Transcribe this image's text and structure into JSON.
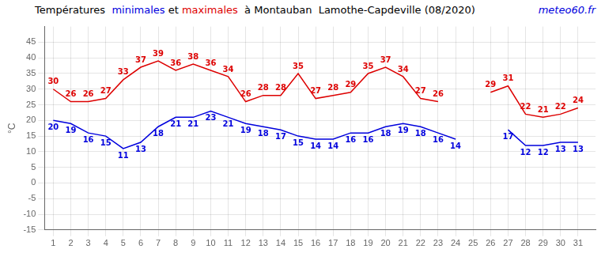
{
  "chart_data": {
    "type": "line",
    "title": "Températures  minimales et maximales  à Montauban  Lamothe-Capdeville (08/2020)",
    "y_label": "°C",
    "annotations": [
      "meteo60.fr"
    ],
    "x": [
      1,
      2,
      3,
      4,
      5,
      6,
      7,
      8,
      9,
      10,
      11,
      12,
      13,
      14,
      15,
      16,
      17,
      18,
      19,
      20,
      21,
      22,
      23,
      24,
      25,
      26,
      27,
      28,
      29,
      30,
      31
    ],
    "series": [
      {
        "name": "minimales",
        "color": "#0000dd",
        "values": [
          20,
          19,
          16,
          15,
          11,
          13,
          18,
          21,
          21,
          23,
          21,
          19,
          18,
          17,
          15,
          14,
          14,
          16,
          16,
          18,
          19,
          18,
          16,
          14,
          null,
          null,
          17,
          12,
          12,
          13,
          13
        ]
      },
      {
        "name": "maximales",
        "color": "#dd0000",
        "values": [
          30,
          26,
          26,
          27,
          33,
          37,
          39,
          36,
          38,
          36,
          34,
          26,
          28,
          28,
          35,
          27,
          28,
          29,
          35,
          37,
          34,
          27,
          26,
          null,
          null,
          29,
          31,
          22,
          21,
          22,
          24
        ]
      }
    ],
    "xlim": [
      0.5,
      32
    ],
    "xticks": [
      1,
      2,
      3,
      4,
      5,
      6,
      7,
      8,
      9,
      10,
      11,
      12,
      13,
      14,
      15,
      16,
      17,
      18,
      19,
      20,
      21,
      22,
      23,
      24,
      25,
      26,
      27,
      28,
      29,
      30,
      31
    ],
    "ylim": [
      -15,
      50
    ],
    "yticks": [
      -15,
      -10,
      -5,
      0,
      5,
      10,
      15,
      20,
      25,
      30,
      35,
      40,
      45
    ],
    "grid": true,
    "data_labels": true
  }
}
